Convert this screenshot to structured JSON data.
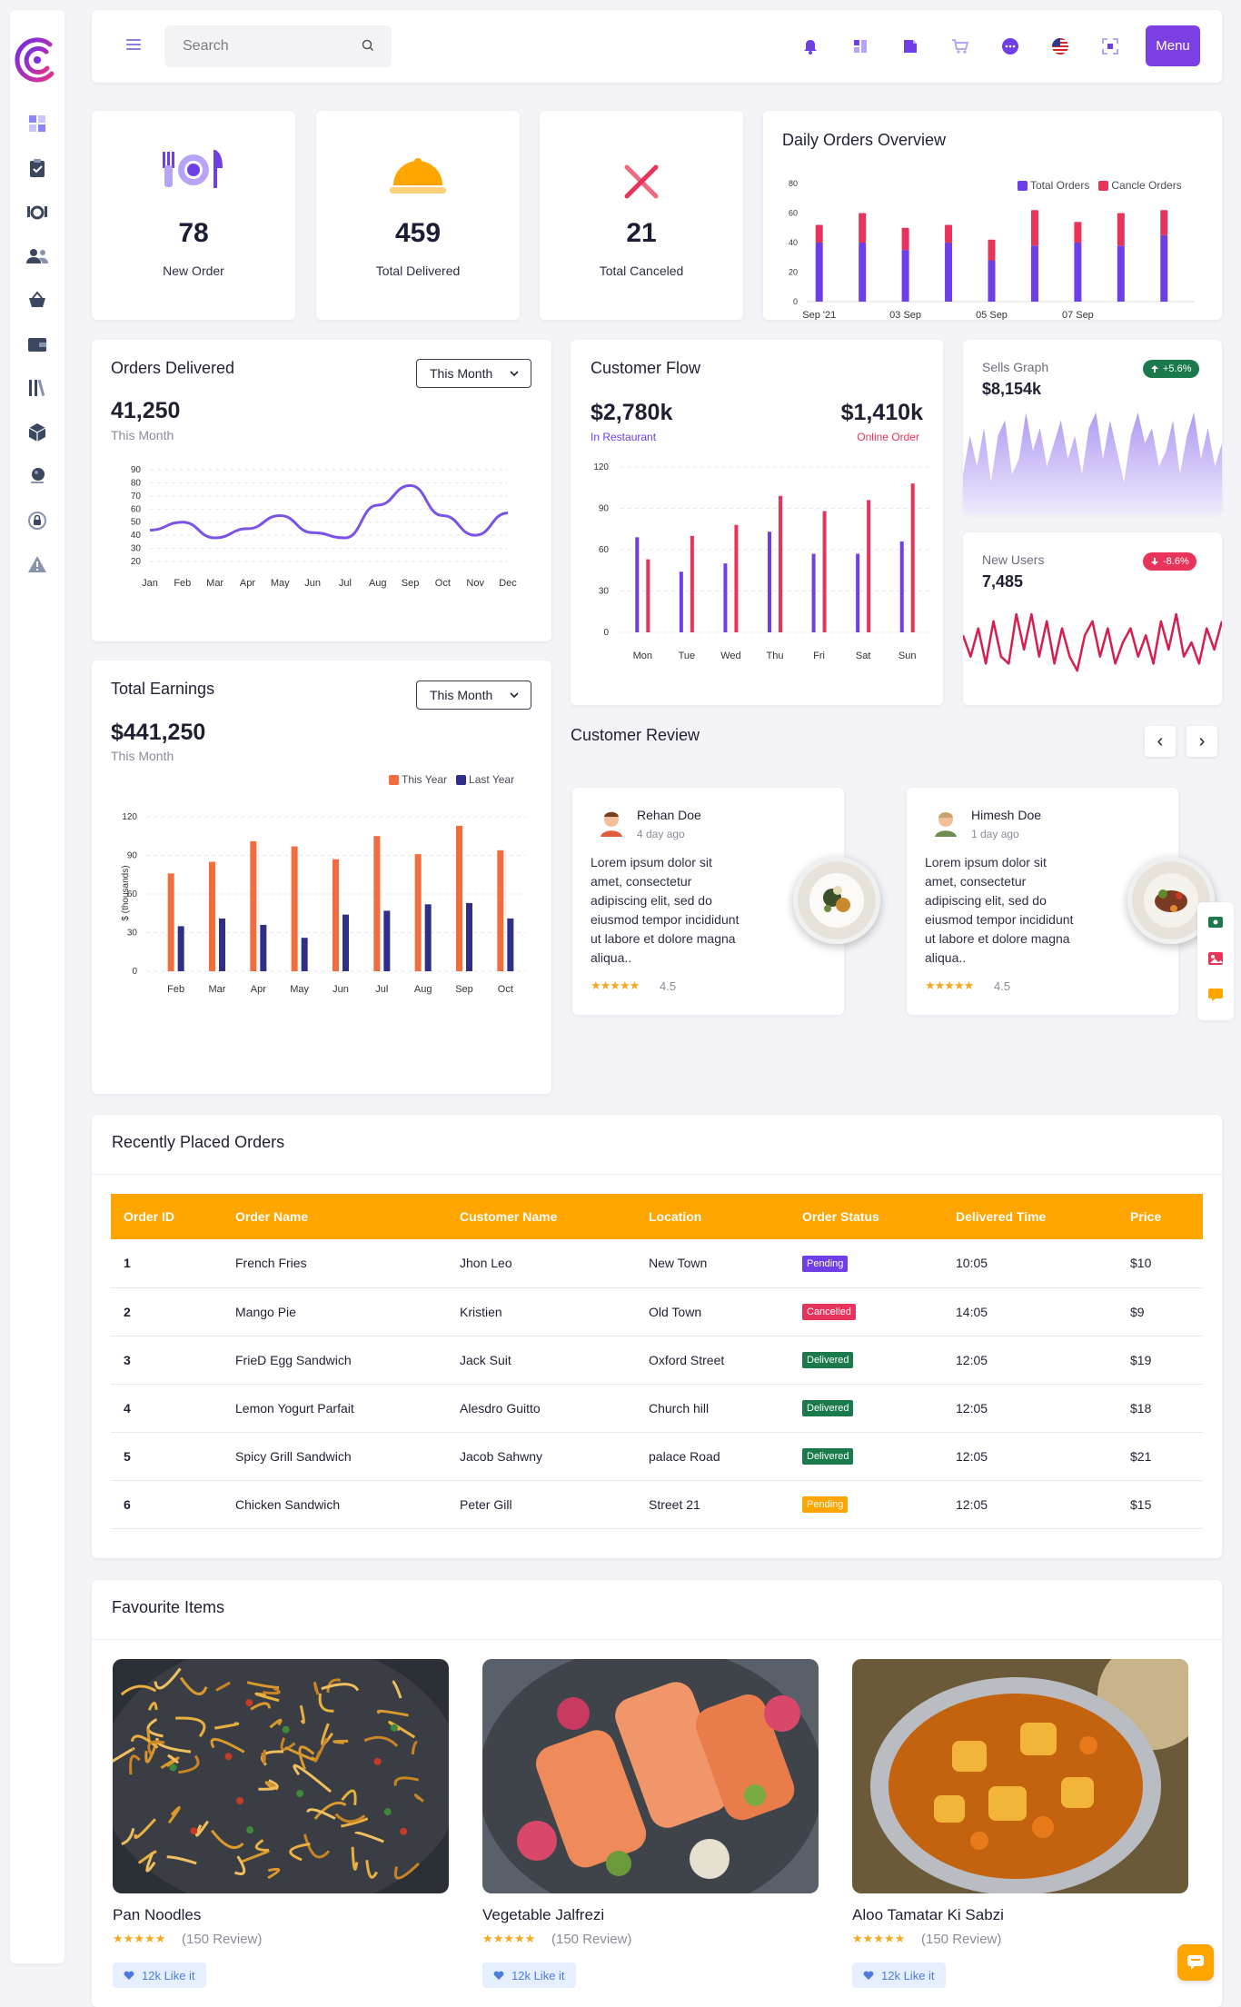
{
  "header": {
    "search_placeholder": "Search",
    "menu_label": "Menu",
    "icons": [
      "bell-icon",
      "clipboard-icon",
      "note-icon",
      "cart-icon",
      "chat-icon",
      "us-flag-icon",
      "fullscreen-icon"
    ]
  },
  "sidebar": {
    "items": [
      "dashboard-icon",
      "orders-clipboard-icon",
      "restaurant-icon",
      "users-icon",
      "basket-icon",
      "wallet-icon",
      "library-icon",
      "box-icon",
      "globe-icon",
      "lock-icon",
      "warning-icon"
    ]
  },
  "stats": [
    {
      "value": "78",
      "label": "New Order"
    },
    {
      "value": "459",
      "label": "Total Delivered"
    },
    {
      "value": "21",
      "label": "Total Canceled"
    }
  ],
  "daily_orders": {
    "title": "Daily Orders Overview",
    "legend": [
      "Total Orders",
      "Cancle Orders"
    ],
    "colors": {
      "total": "#6e3fe6",
      "cancel": "#e8335b"
    },
    "y_ticks": [
      "80",
      "60",
      "40",
      "20",
      "0"
    ],
    "x_labels": [
      "Sep '21",
      "03 Sep",
      "05 Sep",
      "07 Sep"
    ]
  },
  "orders_delivered": {
    "title": "Orders Delivered",
    "dropdown": "This Month",
    "value": "41,250",
    "sub": "This Month",
    "y_ticks": [
      "90",
      "80",
      "70",
      "60",
      "50",
      "40",
      "30",
      "20"
    ],
    "x_labels": [
      "Jan",
      "Feb",
      "Mar",
      "Apr",
      "May",
      "Jun",
      "Jul",
      "Aug",
      "Sep",
      "Oct",
      "Nov",
      "Dec"
    ]
  },
  "customer_flow": {
    "title": "Customer Flow",
    "left_value": "$2,780k",
    "left_label": "In Restaurant",
    "right_value": "$1,410k",
    "right_label": "Online Order",
    "y_ticks": [
      "120",
      "90",
      "60",
      "30",
      "0"
    ],
    "x_labels": [
      "Mon",
      "Tue",
      "Wed",
      "Thu",
      "Fri",
      "Sat",
      "Sun"
    ]
  },
  "sells_graph": {
    "title": "Sells Graph",
    "value": "$8,154k",
    "badge": "+5.6%"
  },
  "new_users": {
    "title": "New Users",
    "value": "7,485",
    "badge": "-8.6%"
  },
  "total_earnings": {
    "title": "Total Earnings",
    "dropdown": "This Month",
    "value": "$441,250",
    "sub": "This Month",
    "legend": [
      "This Year",
      "Last Year"
    ],
    "ylabel": "$ (thousands)",
    "colors": {
      "this_year": "#f26c3d",
      "last_year": "#2f2f8a"
    }
  },
  "customer_review": {
    "title": "Customer Review",
    "prev": "‹",
    "next": "›",
    "reviews": [
      {
        "name": "Rehan Doe",
        "ago": "4 day ago",
        "text": "Lorem ipsum dolor sit amet, consectetur adipiscing elit, sed do eiusmod tempor incididunt ut labore et dolore magna aliqua..",
        "stars": "★★★★★",
        "rating": "4.5"
      },
      {
        "name": "Himesh Doe",
        "ago": "1 day ago",
        "text": "Lorem ipsum dolor sit amet, consectetur adipiscing elit, sed do eiusmod tempor incididunt ut labore et dolore magna aliqua..",
        "stars": "★★★★★",
        "rating": "4.5"
      }
    ]
  },
  "recent_orders": {
    "title": "Recently Placed Orders",
    "columns": [
      "Order ID",
      "Order Name",
      "Customer Name",
      "Location",
      "Order Status",
      "Delivered Time",
      "Price"
    ],
    "rows": [
      [
        "1",
        "French Fries",
        "Jhon Leo",
        "New Town",
        "Pending",
        "10:05",
        "$10"
      ],
      [
        "2",
        "Mango Pie",
        "Kristien",
        "Old Town",
        "Cancelled",
        "14:05",
        "$9"
      ],
      [
        "3",
        "FrieD Egg Sandwich",
        "Jack Suit",
        "Oxford Street",
        "Delivered",
        "12:05",
        "$19"
      ],
      [
        "4",
        "Lemon Yogurt Parfait",
        "Alesdro Guitto",
        "Church hill",
        "Delivered",
        "12:05",
        "$18"
      ],
      [
        "5",
        "Spicy Grill Sandwich",
        "Jacob Sahwny",
        "palace Road",
        "Delivered",
        "12:05",
        "$21"
      ],
      [
        "6",
        "Chicken Sandwich",
        "Peter Gill",
        "Street 21",
        "Pending",
        "12:05",
        "$15"
      ]
    ],
    "status_colors": [
      "#6e3fe6",
      "#e8335b",
      "#1a7a4c",
      "#1a7a4c",
      "#1a7a4c",
      "#ffa500"
    ]
  },
  "favourite_items": {
    "title": "Favourite Items",
    "items": [
      {
        "name": "Pan Noodles",
        "stars": "★★★★★",
        "reviews": "(150 Review)",
        "like": "12k Like it"
      },
      {
        "name": "Vegetable Jalfrezi",
        "stars": "★★★★★",
        "reviews": "(150 Review)",
        "like": "12k Like it"
      },
      {
        "name": "Aloo Tamatar Ki Sabzi",
        "stars": "★★★★★",
        "reviews": "(150 Review)",
        "like": "12k Like it"
      }
    ]
  },
  "chart_data": [
    {
      "type": "bar",
      "title": "Daily Orders Overview",
      "categories": [
        "1",
        "2",
        "3",
        "4",
        "5",
        "6",
        "7",
        "8",
        "9"
      ],
      "x_tick_labels": [
        "Sep '21",
        "03 Sep",
        "05 Sep",
        "07 Sep"
      ],
      "series": [
        {
          "name": "Total Orders",
          "values": [
            40,
            40,
            35,
            40,
            28,
            38,
            40,
            38,
            45
          ]
        },
        {
          "name": "Cancle Orders",
          "values": [
            12,
            20,
            15,
            12,
            14,
            24,
            14,
            22,
            17
          ]
        }
      ],
      "stacked": true,
      "ylim": [
        0,
        80
      ],
      "legend_position": "top-right"
    },
    {
      "type": "line",
      "title": "Orders Delivered",
      "categories": [
        "Jan",
        "Feb",
        "Mar",
        "Apr",
        "May",
        "Jun",
        "Jul",
        "Aug",
        "Sep",
        "Oct",
        "Nov",
        "Dec"
      ],
      "series": [
        {
          "name": "Orders",
          "values": [
            44,
            50,
            38,
            45,
            55,
            42,
            38,
            63,
            78,
            55,
            40,
            57
          ]
        }
      ],
      "ylim": [
        20,
        90
      ]
    },
    {
      "type": "bar",
      "title": "Customer Flow",
      "categories": [
        "Mon",
        "Tue",
        "Wed",
        "Thu",
        "Fri",
        "Sat",
        "Sun"
      ],
      "series": [
        {
          "name": "In Restaurant",
          "values": [
            69,
            44,
            50,
            73,
            57,
            57,
            66
          ]
        },
        {
          "name": "Online Order",
          "values": [
            53,
            70,
            78,
            99,
            88,
            96,
            108
          ]
        }
      ],
      "ylim": [
        0,
        120
      ]
    },
    {
      "type": "area",
      "title": "Sells Graph",
      "series": [
        {
          "name": "Sells",
          "values": [
            4,
            9,
            5,
            10,
            3,
            9,
            11,
            4,
            6,
            12,
            7,
            10,
            5,
            8,
            11,
            6,
            9,
            4,
            10,
            12,
            6,
            11,
            7,
            3,
            9,
            12,
            8,
            10,
            5,
            7,
            11,
            4,
            9,
            12,
            6,
            10,
            5,
            8
          ]
        }
      ]
    },
    {
      "type": "line",
      "title": "New Users",
      "series": [
        {
          "name": "Users",
          "values": [
            6,
            3,
            7,
            2,
            8,
            3,
            2,
            9,
            4,
            9,
            3,
            8,
            2,
            7,
            3,
            1,
            6,
            8,
            3,
            7,
            2,
            5,
            7,
            3,
            6,
            2,
            8,
            4,
            9,
            3,
            5,
            2,
            7,
            4,
            8
          ]
        }
      ]
    },
    {
      "type": "bar",
      "title": "Total Earnings",
      "categories": [
        "Feb",
        "Mar",
        "Apr",
        "May",
        "Jun",
        "Jul",
        "Aug",
        "Sep",
        "Oct"
      ],
      "series": [
        {
          "name": "This Year",
          "values": [
            76,
            85,
            101,
            97,
            87,
            105,
            91,
            113,
            94
          ]
        },
        {
          "name": "Last Year",
          "values": [
            35,
            41,
            36,
            26,
            44,
            47,
            52,
            53,
            41
          ]
        }
      ],
      "ylabel": "$ (thousands)",
      "ylim": [
        0,
        120
      ],
      "legend_position": "top-right"
    }
  ]
}
